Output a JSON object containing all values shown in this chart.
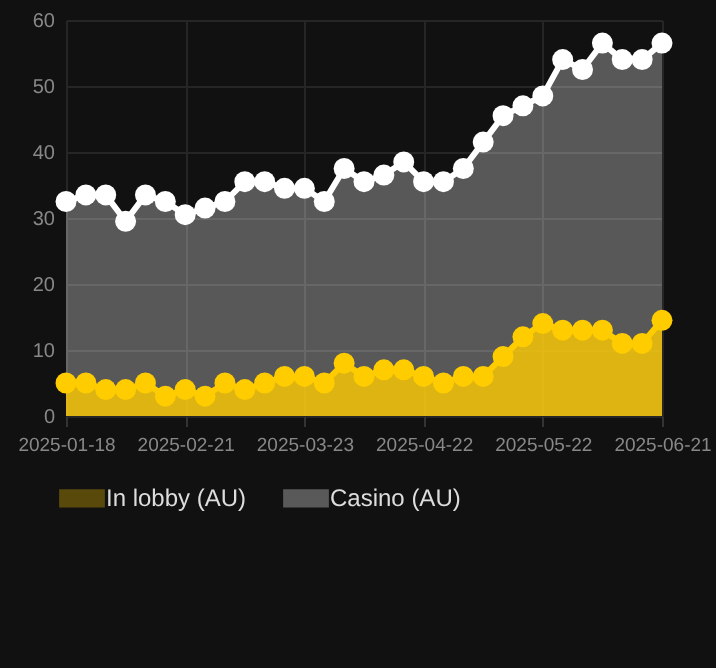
{
  "chart_data": {
    "type": "area",
    "categories": [
      "2025-01-18",
      null,
      null,
      null,
      null,
      null,
      "2025-02-21",
      null,
      null,
      null,
      null,
      null,
      "2025-03-23",
      null,
      null,
      null,
      null,
      null,
      "2025-04-22",
      null,
      null,
      null,
      null,
      null,
      "2025-05-22",
      null,
      null,
      null,
      null,
      null,
      "2025-06-21"
    ],
    "series": [
      {
        "name": "Casino (AU)",
        "color": "#ffffff",
        "values": [
          32.5,
          33.5,
          33.5,
          29.5,
          33.5,
          32.5,
          30.5,
          31.5,
          32.5,
          35.5,
          35.5,
          34.5,
          34.5,
          32.5,
          37.5,
          35.5,
          36.5,
          38.5,
          35.5,
          35.5,
          37.5,
          41.5,
          45.5,
          47,
          48.5,
          54,
          52.5,
          56.5,
          54,
          54,
          56.5
        ]
      },
      {
        "name": "In lobby (AU)",
        "color": "#ffcc00",
        "values": [
          5,
          5,
          4,
          4,
          5,
          3,
          4,
          3,
          5,
          4,
          5,
          6,
          6,
          5,
          8,
          6,
          7,
          7,
          6,
          5,
          6,
          6,
          9,
          12,
          14,
          13,
          13,
          13,
          11,
          11,
          14.5
        ]
      }
    ],
    "ylim": [
      0,
      60
    ],
    "yticks": [
      0,
      10,
      20,
      30,
      40,
      50,
      60
    ],
    "grid": true,
    "legend": "bottom",
    "marker": "circle"
  }
}
